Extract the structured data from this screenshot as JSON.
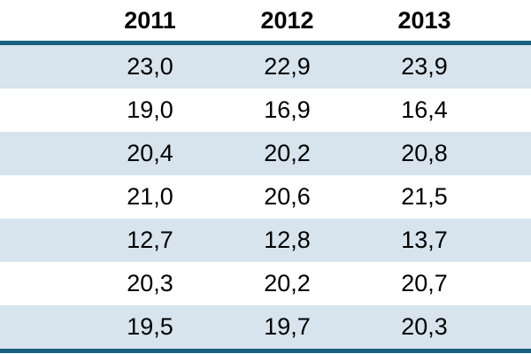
{
  "chart_data": {
    "type": "table",
    "title": "",
    "columns": [
      "2011",
      "2012",
      "2013"
    ],
    "rows": [
      [
        "23,0",
        "22,9",
        "23,9"
      ],
      [
        "19,0",
        "16,9",
        "16,4"
      ],
      [
        "20,4",
        "20,2",
        "20,8"
      ],
      [
        "21,0",
        "20,6",
        "21,5"
      ],
      [
        "12,7",
        "12,8",
        "13,7"
      ],
      [
        "20,3",
        "20,2",
        "20,7"
      ],
      [
        "19,5",
        "19,7",
        "20,3"
      ]
    ],
    "values": [
      [
        23.0,
        22.9,
        23.9
      ],
      [
        19.0,
        16.9,
        16.4
      ],
      [
        20.4,
        20.2,
        20.8
      ],
      [
        21.0,
        20.6,
        21.5
      ],
      [
        12.7,
        12.8,
        13.7
      ],
      [
        20.3,
        20.2,
        20.7
      ],
      [
        19.5,
        19.7,
        20.3
      ]
    ],
    "decimal_separator": ",",
    "layout_hints": {
      "row_labels_visible": false,
      "zebra_striping": true,
      "header_rule": true,
      "bottom_rule": true
    }
  },
  "colors": {
    "accent_rule": "#19617f",
    "stripe_row": "#d7e4ee",
    "plain_row": "#ffffff",
    "text": "#000000"
  }
}
